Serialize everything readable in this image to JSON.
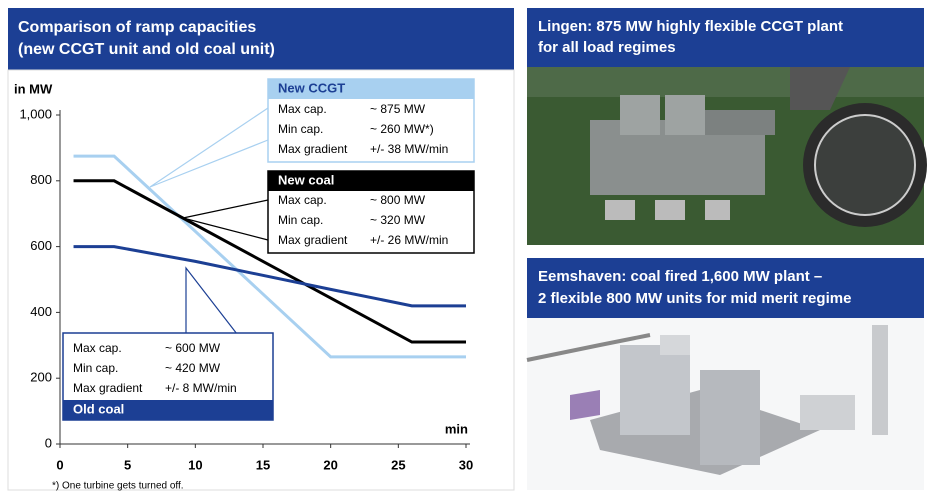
{
  "chart_data": {
    "type": "line",
    "title": "Comparison of ramp capacities",
    "subtitle": "(new CCGT unit and old coal unit)",
    "y_label": "in MW",
    "x_label": "min",
    "footnote": "*) One turbine gets turned off.",
    "xlim": [
      0,
      30
    ],
    "xticks": [
      0,
      5,
      10,
      15,
      20,
      25,
      30
    ],
    "ylim": [
      0,
      1000
    ],
    "yticks": [
      0,
      200,
      400,
      600,
      800,
      {
        "value": 1000,
        "label": "1,000"
      }
    ],
    "grid": false,
    "series": [
      {
        "name": "New CCGT",
        "color": "#a8d0f0",
        "x": [
          1,
          4,
          20,
          30
        ],
        "values": [
          875,
          875,
          265,
          265
        ],
        "specs": [
          [
            "Max cap.",
            "~ 875 MW"
          ],
          [
            "Min cap.",
            "~ 260 MW*)"
          ],
          [
            "Max gradient",
            "+/- 38 MW/min"
          ]
        ]
      },
      {
        "name": "New coal",
        "color": "#000000",
        "x": [
          1,
          4,
          26,
          30
        ],
        "values": [
          800,
          800,
          310,
          310
        ],
        "specs": [
          [
            "Max cap.",
            "~ 800 MW"
          ],
          [
            "Min cap.",
            "~ 320 MW"
          ],
          [
            "Max gradient",
            "+/- 26 MW/min"
          ]
        ]
      },
      {
        "name": "Old coal",
        "color": "#1c3f94",
        "x": [
          1,
          4,
          10,
          20,
          26,
          30
        ],
        "values": [
          600,
          600,
          555,
          470,
          420,
          420
        ],
        "specs": [
          [
            "Max cap.",
            "~ 600 MW"
          ],
          [
            "Min cap.",
            "~ 420 MW"
          ],
          [
            "Max gradient",
            "+/- 8 MW/min"
          ]
        ]
      }
    ]
  },
  "panels": [
    {
      "title": "Lingen: 875 MW highly flexible CCGT plant",
      "subtitle": "for all load regimes"
    },
    {
      "title": "Eemshaven: coal fired 1,600 MW plant –",
      "subtitle": "2 flexible 800 MW units for mid merit regime"
    }
  ]
}
